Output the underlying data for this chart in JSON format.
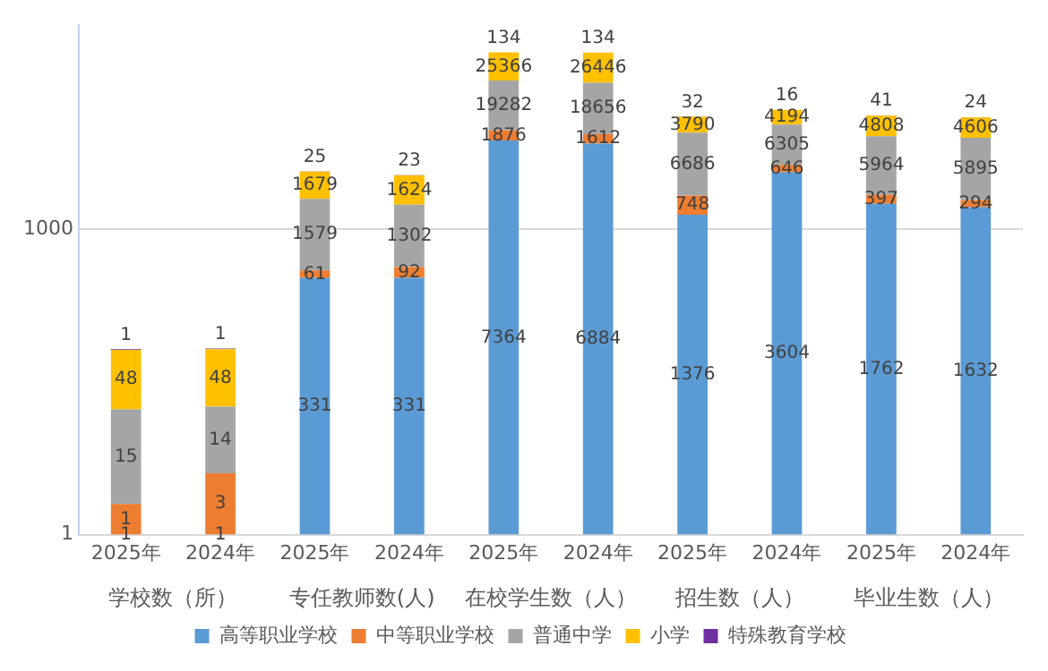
{
  "chart_data": {
    "type": "bar",
    "stacked": true,
    "log": "y",
    "grid": "y",
    "legend": "bottom",
    "data_labels": true,
    "categories": [
      "2025年",
      "2024年",
      "2025年",
      "2024年",
      "2025年",
      "2024年",
      "2025年",
      "2024年",
      "2025年",
      "2024年"
    ],
    "annotations": [
      "学校数（所）",
      "专任教师数(人)",
      "在校学生数（人）",
      "招生数（人）",
      "毕业生数（人）"
    ],
    "ylim": [
      1,
      100000
    ],
    "yticks": [
      1,
      1000
    ],
    "series": [
      {
        "name": "高等职业学校",
        "color": "#5b9bd5",
        "values": [
          1,
          1,
          331,
          331,
          7364,
          6884,
          1376,
          3604,
          1762,
          1632
        ]
      },
      {
        "name": "中等职业学校",
        "color": "#ed7d31",
        "values": [
          1,
          3,
          61,
          92,
          1876,
          1612,
          748,
          646,
          397,
          294
        ]
      },
      {
        "name": "普通中学",
        "color": "#a5a5a5",
        "values": [
          15,
          14,
          1579,
          1302,
          19282,
          18656,
          6686,
          6305,
          5964,
          5895
        ]
      },
      {
        "name": "小学",
        "color": "#ffc000",
        "values": [
          48,
          48,
          1679,
          1624,
          25366,
          26446,
          3790,
          4194,
          4808,
          4606
        ]
      },
      {
        "name": "特殊教育学校",
        "color": "#7030a0",
        "values": [
          1,
          1,
          25,
          23,
          134,
          134,
          32,
          16,
          41,
          24
        ]
      }
    ]
  }
}
